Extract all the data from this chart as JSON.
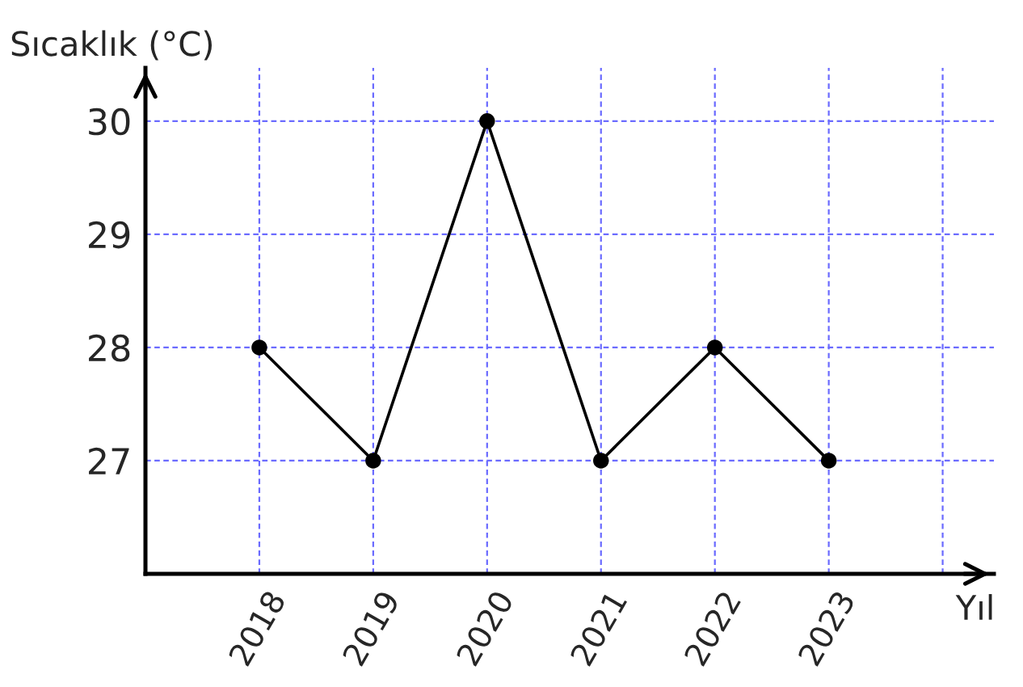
{
  "chart_data": {
    "type": "line",
    "ylabel": "Sıcaklık (°C)",
    "xlabel": "Yıl",
    "x": [
      2018,
      2019,
      2020,
      2021,
      2022,
      2023
    ],
    "series": [
      {
        "color": "#000000",
        "values": [
          28,
          27,
          30,
          27,
          28,
          27
        ]
      }
    ],
    "xlim": [
      2017,
      2024.45
    ],
    "xticks": [
      2018,
      2019,
      2020,
      2021,
      2022,
      2023,
      {
        "value": 2024,
        "label": null
      }
    ],
    "ylim": [
      26,
      30.47
    ],
    "yticks": [
      27,
      28,
      29,
      30
    ],
    "grid": true,
    "marker": "circle",
    "line_style": "solid"
  }
}
